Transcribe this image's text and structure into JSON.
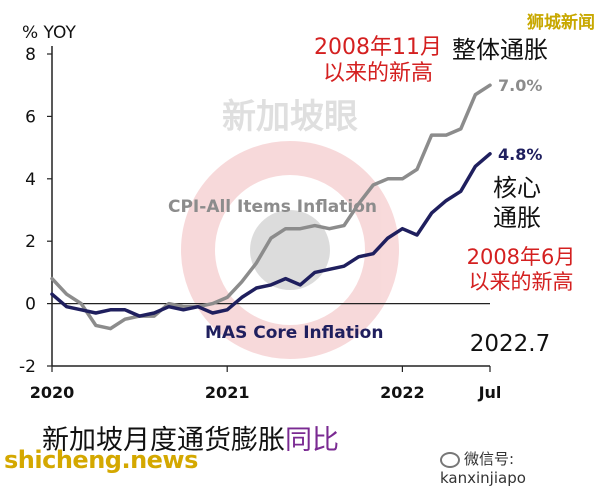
{
  "chart_data": {
    "type": "line",
    "title": "新加坡月度通货膨胀同比",
    "ylabel": "% YOY",
    "ylim": [
      -2,
      8
    ],
    "yticks": [
      -2,
      0,
      2,
      4,
      6,
      8
    ],
    "xlim": [
      "2020-01",
      "2022-07"
    ],
    "xticks": [
      {
        "x": "2020-01",
        "label": "2020"
      },
      {
        "x": "2021-01",
        "label": "2021"
      },
      {
        "x": "2022-01",
        "label": "2022"
      },
      {
        "x": "2022-07",
        "label": "Jul"
      }
    ],
    "grid": false,
    "legend": "inline labels",
    "series": [
      {
        "name": "CPI-All Items Inflation",
        "color": "#8c8c8c",
        "end_label": "7.0%",
        "x": [
          "2020-01",
          "2020-02",
          "2020-03",
          "2020-04",
          "2020-05",
          "2020-06",
          "2020-07",
          "2020-08",
          "2020-09",
          "2020-10",
          "2020-11",
          "2020-12",
          "2021-01",
          "2021-02",
          "2021-03",
          "2021-04",
          "2021-05",
          "2021-06",
          "2021-07",
          "2021-08",
          "2021-09",
          "2021-10",
          "2021-11",
          "2021-12",
          "2022-01",
          "2022-02",
          "2022-03",
          "2022-04",
          "2022-05",
          "2022-06",
          "2022-07"
        ],
        "values": [
          0.8,
          0.3,
          0.0,
          -0.7,
          -0.8,
          -0.5,
          -0.4,
          -0.4,
          0.0,
          -0.1,
          -0.1,
          0.0,
          0.2,
          0.7,
          1.3,
          2.1,
          2.4,
          2.4,
          2.5,
          2.4,
          2.5,
          3.2,
          3.8,
          4.0,
          4.0,
          4.3,
          5.4,
          5.4,
          5.6,
          6.7,
          7.0
        ]
      },
      {
        "name": "MAS Core Inflation",
        "color": "#1f1f5e",
        "end_label": "4.8%",
        "x": [
          "2020-01",
          "2020-02",
          "2020-03",
          "2020-04",
          "2020-05",
          "2020-06",
          "2020-07",
          "2020-08",
          "2020-09",
          "2020-10",
          "2020-11",
          "2020-12",
          "2021-01",
          "2021-02",
          "2021-03",
          "2021-04",
          "2021-05",
          "2021-06",
          "2021-07",
          "2021-08",
          "2021-09",
          "2021-10",
          "2021-11",
          "2021-12",
          "2022-01",
          "2022-02",
          "2022-03",
          "2022-04",
          "2022-05",
          "2022-06",
          "2022-07"
        ],
        "values": [
          0.3,
          -0.1,
          -0.2,
          -0.3,
          -0.2,
          -0.2,
          -0.4,
          -0.3,
          -0.1,
          -0.2,
          -0.1,
          -0.3,
          -0.2,
          0.2,
          0.5,
          0.6,
          0.8,
          0.6,
          1.0,
          1.1,
          1.2,
          1.5,
          1.6,
          2.1,
          2.4,
          2.2,
          2.9,
          3.3,
          3.6,
          4.4,
          4.8
        ]
      }
    ],
    "annotations": [
      {
        "id": "cpi-note",
        "lines": [
          "2008年11月",
          "以来的新高"
        ],
        "color": "#d42020"
      },
      {
        "id": "cpi-term",
        "lines": [
          "整体通胀"
        ],
        "color": "#111111"
      },
      {
        "id": "core-term",
        "lines": [
          "核心",
          "通胀"
        ],
        "color": "#111111"
      },
      {
        "id": "core-note",
        "lines": [
          "2008年6月",
          "以来的新高"
        ],
        "color": "#d42020"
      },
      {
        "id": "date",
        "lines": [
          "2022.7"
        ],
        "color": "#111111"
      }
    ],
    "watermark": "新加坡眼"
  },
  "caption": {
    "main": "新加坡月度通货膨胀",
    "accent": "同比"
  },
  "branding": {
    "top": "狮城新闻",
    "bottom": "shicheng.news",
    "wechat": "微信号: kanxinjiapo"
  }
}
